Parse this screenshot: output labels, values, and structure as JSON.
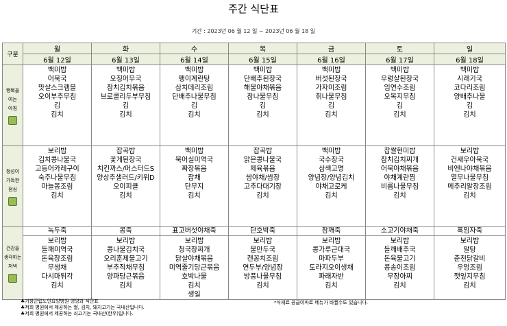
{
  "title": "주간 식단표",
  "period": "기간 : 2023년 06 월 12 일 ~ 2023년 06 월 18 일",
  "header_label": "구분",
  "days": [
    {
      "name": "월",
      "date": "6월 12일"
    },
    {
      "name": "화",
      "date": "6월 13일"
    },
    {
      "name": "수",
      "date": "6월 14일"
    },
    {
      "name": "목",
      "date": "6월 15일"
    },
    {
      "name": "금",
      "date": "6월 16일"
    },
    {
      "name": "토",
      "date": "6월 17일"
    },
    {
      "name": "일",
      "date": "6월 18일"
    }
  ],
  "meals": [
    {
      "label_lines": [
        "행복을",
        "여는",
        "아침"
      ],
      "cells": [
        [
          "백미밥",
          "어묵국",
          "맛살스크램블",
          "오이부추무침",
          "김",
          "김치"
        ],
        [
          "백미밥",
          "오징어무국",
          "참치김치볶음",
          "브로콜리두부무침",
          "김",
          "김치"
        ],
        [
          "백미밥",
          "팽이계란탕",
          "삼치데리조림",
          "단배추나물무침",
          "김",
          "김치"
        ],
        [
          "백미밥",
          "단배추된장국",
          "해물야채볶음",
          "참나물무침",
          "김",
          "김치"
        ],
        [
          "백미밥",
          "버섯된장국",
          "가자미조림",
          "취나물무침",
          "김",
          "김치"
        ],
        [
          "백미밥",
          "우렁살된장국",
          "임연수조림",
          "오복지무침",
          "김",
          "김치"
        ],
        [
          "백미밥",
          "시래기국",
          "코다리조림",
          "양배추나물",
          "김",
          "김치"
        ]
      ]
    },
    {
      "label_lines": [
        "정성이",
        "가득한",
        "점심"
      ],
      "cells": [
        [
          "보리밥",
          "김치콩나물국",
          "고등어카레구이",
          "숙주나물무침",
          "마늘쫑조림",
          "김치"
        ],
        [
          "잡곡밥",
          "꽃게된장국",
          "치킨까스/머스터드S",
          "양상추샐러드/키위D",
          "오이피클",
          "김치"
        ],
        [
          "백미밥",
          "북어실미역국",
          "짜장볶음",
          "잡채",
          "단무지",
          "김치"
        ],
        [
          "잡곡밥",
          "맑은콩나물국",
          "제육볶음",
          "쌈야채/쌈장",
          "고추다대기장",
          "김치"
        ],
        [
          "백미밥",
          "국수장국",
          "삼색고명",
          "양념장/양념김치",
          "야채고로케",
          "김치"
        ],
        [
          "찹쌀현미밥",
          "참치김치찌개",
          "어묵야채볶음",
          "야채계란찜",
          "비름나물무침",
          "김치"
        ],
        [
          "보리밥",
          "건새우아욱국",
          "비엔나야채볶음",
          "열무나물무침",
          "메추리알장조림",
          "김치"
        ]
      ]
    },
    {
      "label_lines": [
        "건강을",
        "생각하는",
        "저녁"
      ],
      "porridge": [
        "녹두죽",
        "콩죽",
        "표고버섯야채죽",
        "단호박죽",
        "참깨죽",
        "소고기야채죽",
        "흑임자죽"
      ],
      "cells": [
        [
          "보리밥",
          "들깨미역국",
          "돈육장조림",
          "무생채",
          "다시마튀각",
          "김치"
        ],
        [
          "보리밥",
          "콩나물김치국",
          "오리훈제불고기",
          "부추적채무침",
          "양파당근볶음",
          "김치"
        ],
        [
          "보리밥",
          "청국장찌개",
          "닭살야채볶음",
          "미역줄기당근볶음",
          "호박나물",
          "김치"
        ],
        [
          "보리밥",
          "물만두국",
          "캔꽁치조림",
          "연두부/양념장",
          "방풍나물무침",
          "김치"
        ],
        [
          "보리밥",
          "콩가루근대국",
          "마파두부",
          "도라지오이생채",
          "파래자반",
          "김치"
        ],
        [
          "보리밥",
          "들깨배추국",
          "돈육불고기",
          "콩송이조림",
          "무장아찌",
          "김치"
        ],
        [
          "보리밥",
          "알탕",
          "춘천닭갈비",
          "우엉조림",
          "깻잎지무침",
          "김치"
        ]
      ],
      "extra": [
        "",
        "",
        "생일",
        "",
        "",
        "",
        ""
      ]
    }
  ],
  "notes": [
    "♣거창군립노인요양병원 영양과 식단표",
    "♣저희 병원에서 제공하는 쌀, 김치, 돼지고기는 국내산입니다.",
    "♣저희 병원에서 제공하는 쇠고기는 국내산(한우)입니다."
  ],
  "note_right": "*식재료 공급여파로 메뉴가 바뀔수도 있습니다."
}
